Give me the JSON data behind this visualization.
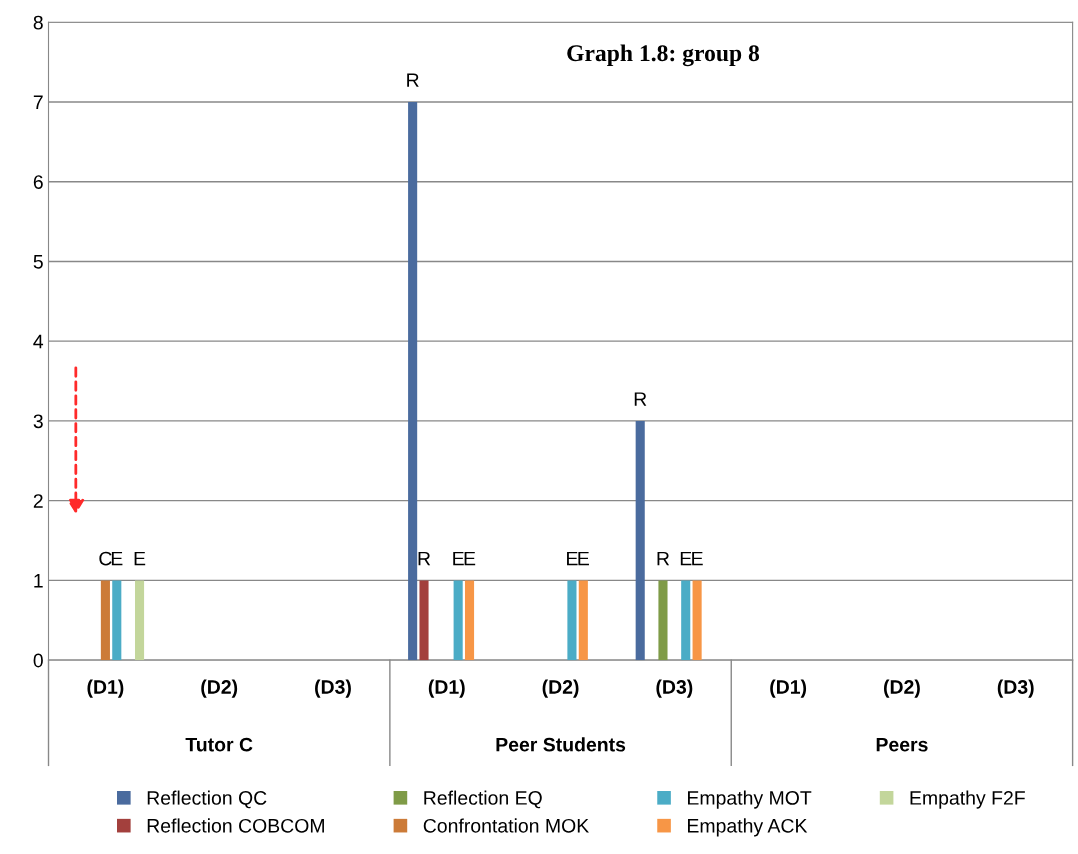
{
  "chart_data": {
    "type": "bar",
    "title": "Graph 1.8: group 8",
    "categories": [
      "(D1)",
      "(D2)",
      "(D3)",
      "(D1)",
      "(D2)",
      "(D3)",
      "(D1)",
      "(D2)",
      "(D3)"
    ],
    "series": [
      {
        "name": "Reflection QC",
        "color": "#4a6b9e",
        "values": [
          0,
          0,
          0,
          7,
          0,
          3,
          0,
          0,
          0
        ],
        "value_labels": [
          null,
          null,
          null,
          "R",
          null,
          "R",
          null,
          null,
          null
        ]
      },
      {
        "name": "Reflection COBCOM",
        "color": "#a3403d",
        "values": [
          0,
          0,
          0,
          1,
          0,
          0,
          0,
          0,
          0
        ],
        "value_labels": [
          null,
          null,
          null,
          "R",
          null,
          null,
          null,
          null,
          null
        ]
      },
      {
        "name": "Reflection EQ",
        "color": "#7f9b47",
        "values": [
          0,
          0,
          0,
          0,
          0,
          1,
          0,
          0,
          0
        ],
        "value_labels": [
          null,
          null,
          null,
          null,
          null,
          "R",
          null,
          null,
          null
        ]
      },
      {
        "name": "Confrontation MOK",
        "color": "#cc7b38",
        "values": [
          1,
          0,
          0,
          0,
          0,
          0,
          0,
          0,
          0
        ],
        "value_labels": [
          "C",
          null,
          null,
          null,
          null,
          null,
          null,
          null,
          null
        ]
      },
      {
        "name": "Empathy MOT",
        "color": "#4bacc6",
        "values": [
          1,
          0,
          0,
          1,
          1,
          1,
          0,
          0,
          0
        ],
        "value_labels": [
          "E",
          null,
          null,
          "E",
          "E",
          "E",
          null,
          null,
          null
        ]
      },
      {
        "name": "Empathy ACK",
        "color": "#f79646",
        "values": [
          0,
          0,
          0,
          1,
          1,
          1,
          0,
          0,
          0
        ],
        "value_labels": [
          null,
          null,
          null,
          "E",
          "E",
          "E",
          null,
          null,
          null
        ]
      },
      {
        "name": "Empathy F2F",
        "color": "#c3d69b",
        "values": [
          1,
          0,
          0,
          0,
          0,
          0,
          0,
          0,
          0
        ],
        "value_labels": [
          "E",
          null,
          null,
          null,
          null,
          null,
          null,
          null,
          null
        ]
      }
    ],
    "annotations": [
      "Tutor C",
      "Peer Students",
      "Peers"
    ],
    "ylim": [
      0,
      8
    ],
    "yticks": [
      0,
      1,
      2,
      3,
      4,
      5,
      6,
      7,
      8
    ],
    "grid": "y",
    "legend": "bottom"
  }
}
